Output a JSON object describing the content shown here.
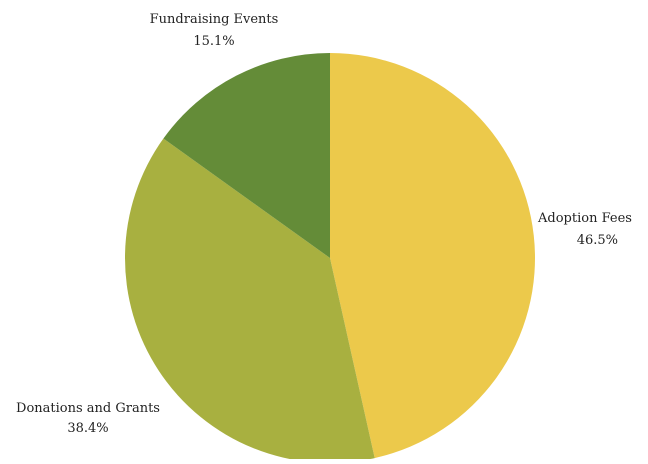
{
  "chart_data": {
    "type": "pie",
    "title": "",
    "slices": [
      {
        "label": "Adoption Fees",
        "value": 46.5,
        "value_label": "46.5%",
        "color": "#ECC94B"
      },
      {
        "label": "Donations and Grants",
        "value": 38.4,
        "value_label": "38.4%",
        "color": "#A8B040"
      },
      {
        "label": "Fundraising Events",
        "value": 15.1,
        "value_label": "15.1%",
        "color": "#648C38"
      }
    ],
    "start_angle": "12 o'clock",
    "direction": "clockwise",
    "legend": "none"
  }
}
